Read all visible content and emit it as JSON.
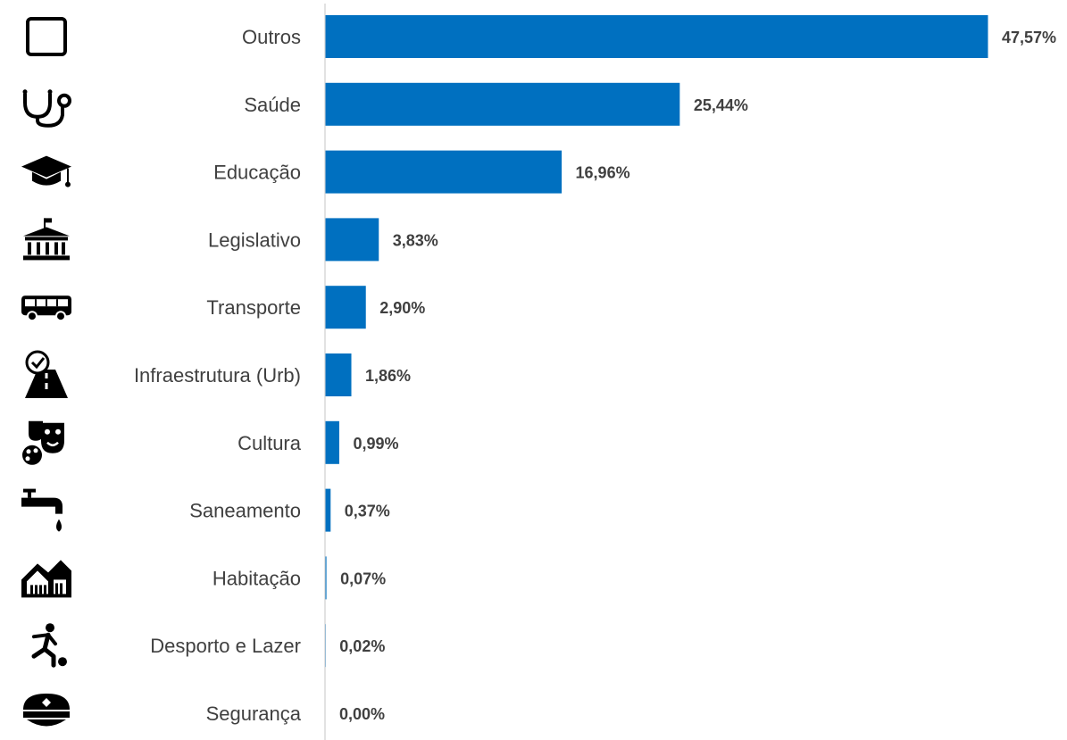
{
  "chart_data": {
    "type": "bar",
    "orientation": "horizontal",
    "categories": [
      "Outros",
      "Saúde",
      "Educação",
      "Legislativo",
      "Transporte",
      "Infraestrutura (Urb)",
      "Cultura",
      "Saneamento",
      "Habitação",
      "Desporto e Lazer",
      "Segurança"
    ],
    "values": [
      47.57,
      25.44,
      16.96,
      3.83,
      2.9,
      1.86,
      0.99,
      0.37,
      0.07,
      0.02,
      0.0
    ],
    "value_labels": [
      "47,57%",
      "25,44%",
      "16,96%",
      "3,83%",
      "2,90%",
      "1,86%",
      "0,99%",
      "0,37%",
      "0,07%",
      "0,02%",
      "0,00%"
    ],
    "icons": [
      "square-outline-icon",
      "stethoscope-icon",
      "graduation-cap-icon",
      "government-building-icon",
      "bus-icon",
      "road-check-icon",
      "theater-masks-palette-icon",
      "water-tap-icon",
      "houses-icon",
      "soccer-player-icon",
      "police-cap-icon"
    ],
    "bar_color": "#0070C0",
    "title": "",
    "xlabel": "",
    "ylabel": "",
    "grid": false,
    "legend": "none"
  }
}
